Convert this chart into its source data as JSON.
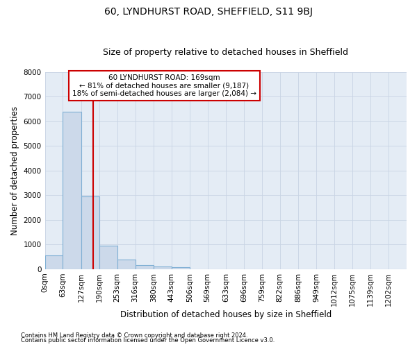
{
  "title1": "60, LYNDHURST ROAD, SHEFFIELD, S11 9BJ",
  "title2": "Size of property relative to detached houses in Sheffield",
  "xlabel": "Distribution of detached houses by size in Sheffield",
  "ylabel": "Number of detached properties",
  "footnote1": "Contains HM Land Registry data © Crown copyright and database right 2024.",
  "footnote2": "Contains public sector information licensed under the Open Government Licence v3.0.",
  "annotation_title": "60 LYNDHURST ROAD: 169sqm",
  "annotation_line1": "← 81% of detached houses are smaller (9,187)",
  "annotation_line2": "18% of semi-detached houses are larger (2,084) →",
  "bar_edges": [
    0,
    63,
    127,
    190,
    253,
    316,
    380,
    443,
    506,
    569,
    633,
    696,
    759,
    822,
    886,
    949,
    1012,
    1075,
    1139,
    1202,
    1265
  ],
  "bar_heights": [
    550,
    6380,
    2960,
    950,
    380,
    160,
    120,
    85,
    0,
    0,
    0,
    0,
    0,
    0,
    0,
    0,
    0,
    0,
    0,
    0
  ],
  "property_size": 169,
  "bar_color": "#ccd9ea",
  "bar_edge_color": "#7fafd4",
  "vline_color": "#cc0000",
  "annotation_box_color": "#cc0000",
  "grid_color": "#c8d4e4",
  "bg_color": "#e4ecf5",
  "ylim": [
    0,
    8000
  ],
  "yticks": [
    0,
    1000,
    2000,
    3000,
    4000,
    5000,
    6000,
    7000,
    8000
  ],
  "title1_fontsize": 10,
  "title2_fontsize": 9,
  "xlabel_fontsize": 8.5,
  "ylabel_fontsize": 8.5,
  "tick_fontsize": 7.5,
  "annotation_fontsize": 7.5,
  "footnote_fontsize": 6
}
